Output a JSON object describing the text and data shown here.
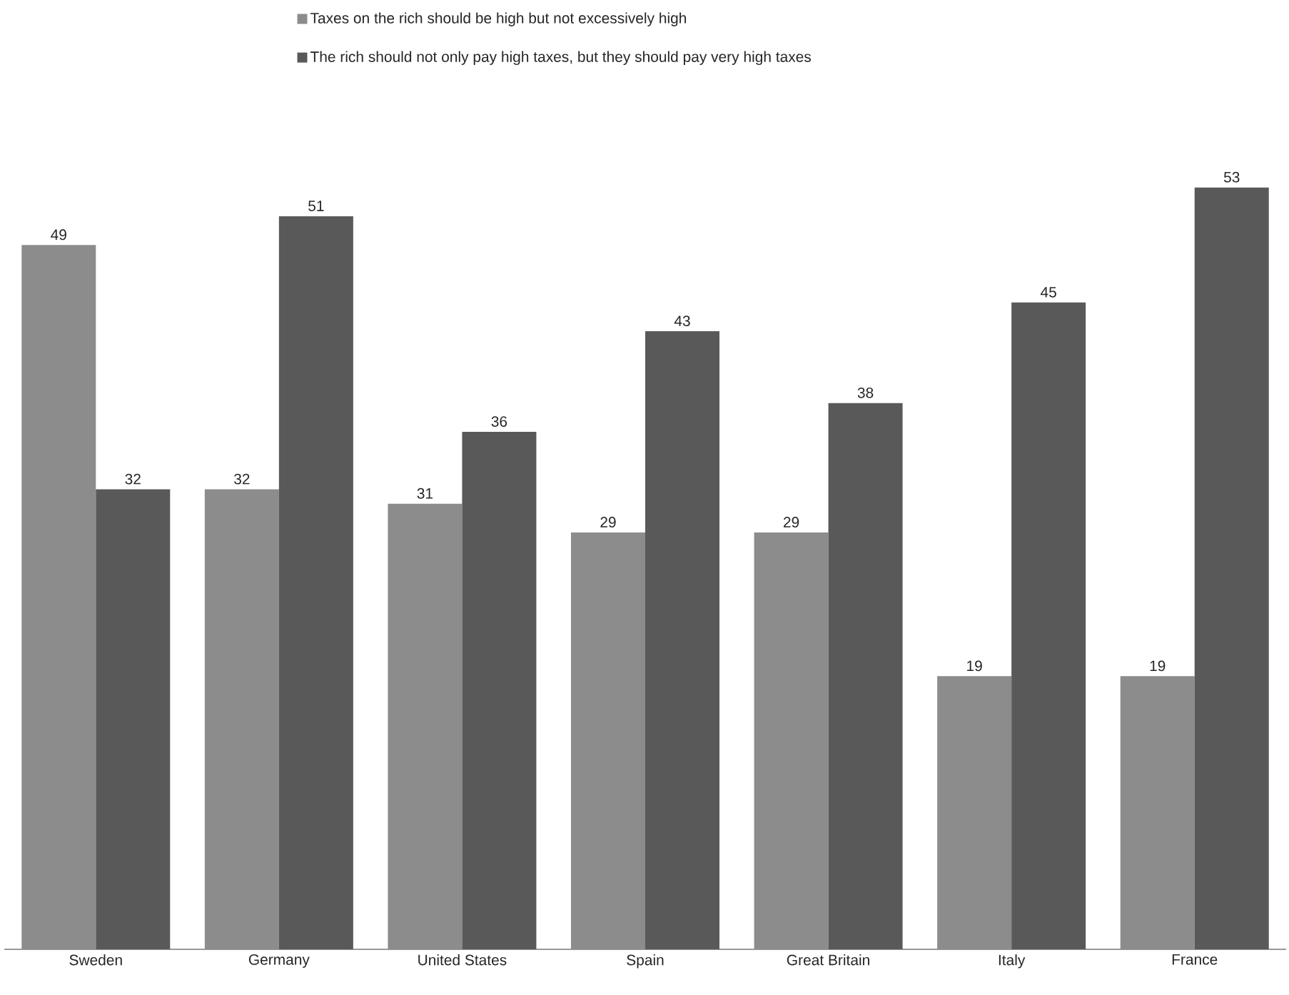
{
  "chart_data": {
    "type": "bar",
    "categories": [
      "Sweden",
      "Germany",
      "United States",
      "Spain",
      "Great Britain",
      "Italy",
      "France"
    ],
    "series": [
      {
        "name": "Taxes on the rich should be high but not excessively high",
        "color": "#8c8c8c",
        "values": [
          49,
          32,
          31,
          29,
          29,
          19,
          19
        ]
      },
      {
        "name": "The rich should not only pay high taxes, but they should pay very high taxes",
        "color": "#595959",
        "values": [
          32,
          51,
          36,
          43,
          38,
          45,
          53
        ]
      }
    ],
    "tick_labels": "x",
    "data_labels": true,
    "legend": "top"
  }
}
